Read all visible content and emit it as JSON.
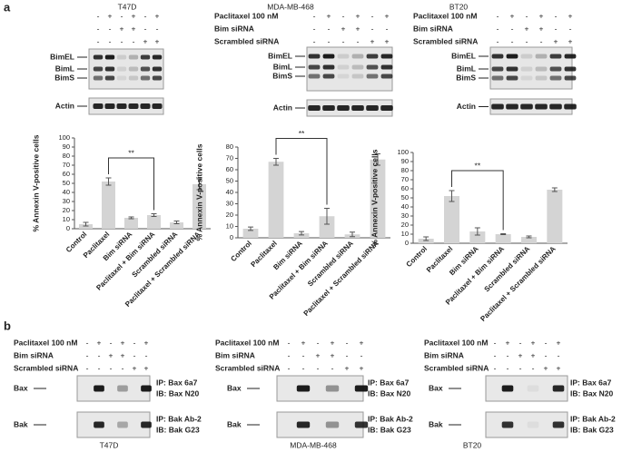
{
  "panel_a": {
    "label": "a",
    "blots": [
      {
        "cell_line": "T47D",
        "treatments": [
          {
            "signs": [
              "-",
              "+",
              "-",
              "+",
              "-",
              "+"
            ]
          },
          {
            "signs": [
              "-",
              "-",
              "+",
              "+",
              "-",
              "-"
            ]
          },
          {
            "signs": [
              "-",
              "-",
              "-",
              "-",
              "+",
              "+"
            ]
          }
        ],
        "bands": [
          "BimEL",
          "BimL",
          "BimS"
        ],
        "loading": "Actin"
      },
      {
        "cell_line": "MDA-MB-468",
        "treatments": [
          {
            "name": "Paclitaxel 100 nM",
            "signs": [
              "-",
              "+",
              "-",
              "+",
              "-",
              "+"
            ]
          },
          {
            "name": "Bim siRNA",
            "signs": [
              "-",
              "-",
              "+",
              "+",
              "-",
              "-"
            ]
          },
          {
            "name": "Scrambled siRNA",
            "signs": [
              "-",
              "-",
              "-",
              "-",
              "+",
              "+"
            ]
          }
        ],
        "bands": [
          "BimEL",
          "BimL",
          "BimS"
        ],
        "loading": "Actin"
      },
      {
        "cell_line": "BT20",
        "treatments": [
          {
            "name": "Paclitaxel 100 nM",
            "signs": [
              "-",
              "+",
              "-",
              "+",
              "-",
              "+"
            ]
          },
          {
            "name": "Bim siRNA",
            "signs": [
              "-",
              "-",
              "+",
              "+",
              "-",
              "-"
            ]
          },
          {
            "name": "Scrambled siRNA",
            "signs": [
              "-",
              "-",
              "-",
              "-",
              "+",
              "+"
            ]
          }
        ],
        "bands": [
          "BimEL",
          "BimL",
          "BimS"
        ],
        "loading": "Actin"
      }
    ]
  },
  "chart_data": [
    {
      "type": "bar",
      "ylabel": "% Annexin V-positive cells",
      "annotation": "**",
      "categories": [
        "Control",
        "Paclitaxel",
        "Bim siRNA",
        "Paclitaxel + Bim siRNA",
        "Scrambled siRNA",
        "Paclitaxel + Scrambled siRNA"
      ],
      "values": [
        5,
        52,
        12,
        15,
        7,
        49
      ],
      "errors": [
        2,
        4,
        1,
        1.5,
        1.5,
        6
      ],
      "color": "#d4d4d4",
      "ylim": [
        0,
        100
      ],
      "yticks": [
        0,
        10,
        20,
        30,
        40,
        50,
        60,
        70,
        80,
        90,
        100
      ]
    },
    {
      "type": "bar",
      "ylabel": "% Annexin V-positive cells",
      "annotation": "**",
      "categories": [
        "Control",
        "Paclitaxel",
        "Bim siRNA",
        "Paclitaxel + Bim siRNA",
        "Scrambled siRNA",
        "Paclitaxel + Scrambled siRNA"
      ],
      "values": [
        8,
        67,
        4,
        19,
        3,
        69
      ],
      "errors": [
        1.5,
        3,
        1.5,
        7,
        2,
        5
      ],
      "color": "#d4d4d4",
      "ylim": [
        0,
        80
      ],
      "yticks": [
        0,
        10,
        20,
        30,
        40,
        50,
        60,
        70,
        80
      ]
    },
    {
      "type": "bar",
      "ylabel": "% Annexin V-positive cells",
      "annotation": "**",
      "categories": [
        "Control",
        "Paclitaxel",
        "Bim siRNA",
        "Paclitaxel + Bim siRNA",
        "Scrambled siRNA",
        "Paclitaxel + Scrambled siRNA"
      ],
      "values": [
        5,
        52,
        13,
        10,
        7,
        59
      ],
      "errors": [
        2,
        6,
        4,
        0.5,
        1,
        2
      ],
      "color": "#d4d4d4",
      "ylim": [
        0,
        100
      ],
      "yticks": [
        0,
        10,
        20,
        30,
        40,
        50,
        60,
        70,
        80,
        90,
        100
      ]
    }
  ],
  "panel_b": {
    "label": "b",
    "blots": [
      {
        "cell_line": "T47D",
        "treatments": [
          {
            "name": "Paclitaxel 100 nM",
            "signs": [
              "-",
              "+",
              "-",
              "+",
              "-",
              "+"
            ]
          },
          {
            "name": "Bim siRNA",
            "signs": [
              "-",
              "-",
              "+",
              "+",
              "-",
              "-"
            ]
          },
          {
            "name": "Scrambled siRNA",
            "signs": [
              "-",
              "-",
              "-",
              "-",
              "+",
              "+"
            ]
          }
        ],
        "rows": [
          {
            "name": "Bax",
            "ip": "IP: Bax 6a7",
            "ib": "IB: Bax N20"
          },
          {
            "name": "Bak",
            "ip": "IP: Bak Ab-2",
            "ib": "IB: Bak G23"
          }
        ]
      },
      {
        "cell_line": "MDA-MB-468",
        "treatments": [
          {
            "name": "Paclitaxel 100 nM",
            "signs": [
              "-",
              "+",
              "-",
              "+",
              "-",
              "+"
            ]
          },
          {
            "name": "Bim siRNA",
            "signs": [
              "-",
              "-",
              "+",
              "+",
              "-",
              "-"
            ]
          },
          {
            "name": "Scrambled siRNA",
            "signs": [
              "-",
              "-",
              "-",
              "-",
              "+",
              "+"
            ]
          }
        ],
        "rows": [
          {
            "name": "Bax",
            "ip": "IP: Bax 6a7",
            "ib": "IB: Bax N20"
          },
          {
            "name": "Bak",
            "ip": "IP: Bak Ab-2",
            "ib": "IB: Bak G23"
          }
        ]
      },
      {
        "cell_line": "BT20",
        "treatments": [
          {
            "name": "Paclitaxel 100 nM",
            "signs": [
              "-",
              "+",
              "-",
              "+",
              "-",
              "+"
            ]
          },
          {
            "name": "Bim siRNA",
            "signs": [
              "-",
              "-",
              "+",
              "+",
              "-",
              "-"
            ]
          },
          {
            "name": "Scrambled siRNA",
            "signs": [
              "-",
              "-",
              "-",
              "-",
              "+",
              "+"
            ]
          }
        ],
        "rows": [
          {
            "name": "Bax",
            "ip": "IP: Bax 6a7",
            "ib": "IB: Bax N20"
          },
          {
            "name": "Bak",
            "ip": "IP: Bak Ab-2",
            "ib": "IB: Bak G23"
          }
        ]
      }
    ]
  }
}
